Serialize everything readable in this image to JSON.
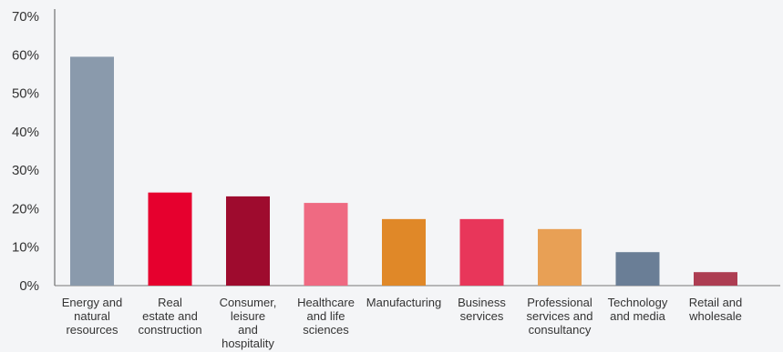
{
  "chart_data": {
    "type": "bar",
    "categories": [
      [
        "Energy and",
        "natural",
        "resources"
      ],
      [
        "Real",
        "estate and",
        "construction"
      ],
      [
        "Consumer,",
        "leisure",
        "and",
        "hospitality"
      ],
      [
        "Healthcare",
        "and life",
        "sciences"
      ],
      [
        "Manufacturing"
      ],
      [
        "Business",
        "services"
      ],
      [
        "Professional",
        "services and",
        "consultancy"
      ],
      [
        "Technology",
        "and media"
      ],
      [
        "Retail and",
        "wholesale"
      ]
    ],
    "values": [
      59.5,
      24.2,
      23.2,
      21.5,
      17.3,
      17.3,
      14.7,
      8.7,
      3.5
    ],
    "colors": [
      "#8a9aac",
      "#e6002e",
      "#9e0b2e",
      "#ef6a82",
      "#e08828",
      "#e8365a",
      "#e8a055",
      "#6a7e96",
      "#ad3d52"
    ],
    "yticks": [
      "0%",
      "10%",
      "20%",
      "30%",
      "40%",
      "50%",
      "60%",
      "70%"
    ],
    "ylim": [
      0,
      70
    ],
    "title": "",
    "xlabel": "",
    "ylabel": "",
    "grid": false,
    "axis_color": "#555555"
  }
}
